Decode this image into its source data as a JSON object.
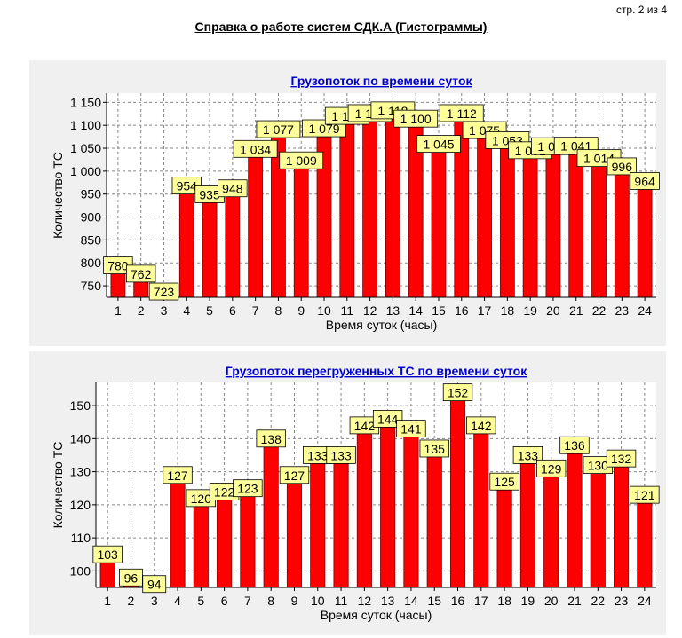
{
  "header": {
    "page_number": "стр. 2 из 4",
    "report_title": "Справка о работе систем СДК.А (Гистограммы)"
  },
  "colors": {
    "bar": "#ff0000",
    "label_bg": "#ffff99",
    "title": "#0000cc",
    "panel_bg": "#f0f0f0"
  },
  "chart_data": [
    {
      "type": "bar",
      "title": "Грузопоток по времени суток",
      "xlabel": "Время суток (часы)",
      "ylabel": "Количество ТС",
      "categories": [
        "1",
        "2",
        "3",
        "4",
        "5",
        "6",
        "7",
        "8",
        "9",
        "10",
        "11",
        "12",
        "13",
        "14",
        "15",
        "16",
        "17",
        "18",
        "19",
        "20",
        "21",
        "22",
        "23",
        "24"
      ],
      "values": [
        780,
        762,
        723,
        954,
        935,
        948,
        1034,
        1077,
        1009,
        1079,
        1106,
        1112,
        1118,
        1100,
        1045,
        1112,
        1075,
        1053,
        1031,
        1040,
        1041,
        1014,
        996,
        964
      ],
      "data_labels": [
        "780",
        "762",
        "723",
        "954",
        "935",
        "948",
        "1 034",
        "1 077",
        "1 009",
        "1 079",
        "1 106",
        "1 112",
        "1 118",
        "1 100",
        "1 045",
        "1 112",
        "1 075",
        "1 053",
        "1 031",
        "1 040",
        "1 041",
        "1 014",
        "996",
        "964"
      ],
      "ylim": [
        725,
        1170
      ],
      "yticks": [
        750,
        800,
        850,
        900,
        950,
        1000,
        1050,
        1100,
        1150
      ],
      "ytick_labels": [
        "750",
        "800",
        "850",
        "900",
        "950",
        "1 000",
        "1 050",
        "1 100",
        "1 150"
      ],
      "grid": true,
      "legend": "none"
    },
    {
      "type": "bar",
      "title": "Грузопоток перегруженных ТС по времени суток",
      "xlabel": "Время суток (часы)",
      "ylabel": "Количество ТС",
      "categories": [
        "1",
        "2",
        "3",
        "4",
        "5",
        "6",
        "7",
        "8",
        "9",
        "10",
        "11",
        "12",
        "13",
        "14",
        "15",
        "16",
        "17",
        "18",
        "19",
        "20",
        "21",
        "22",
        "23",
        "24"
      ],
      "values": [
        103,
        96,
        94,
        127,
        120,
        122,
        123,
        138,
        127,
        133,
        133,
        142,
        144,
        141,
        135,
        152,
        142,
        125,
        133,
        129,
        136,
        130,
        132,
        121
      ],
      "data_labels": [
        "103",
        "96",
        "94",
        "127",
        "120",
        "122",
        "123",
        "138",
        "127",
        "133",
        "133",
        "142",
        "144",
        "141",
        "135",
        "152",
        "142",
        "125",
        "133",
        "129",
        "136",
        "130",
        "132",
        "121"
      ],
      "ylim": [
        95,
        157
      ],
      "yticks": [
        100,
        110,
        120,
        130,
        140,
        150
      ],
      "ytick_labels": [
        "100",
        "110",
        "120",
        "130",
        "140",
        "150"
      ],
      "grid": true,
      "legend": "none"
    }
  ]
}
